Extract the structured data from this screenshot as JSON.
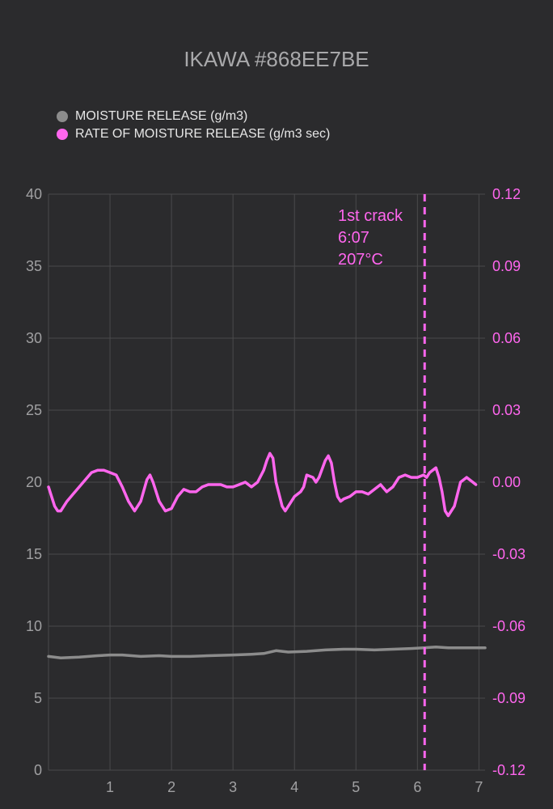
{
  "colors": {
    "background": "#2b2b2d",
    "grid": "#4a4a4c",
    "moisture": "#8c8c8c",
    "rate": "#ff66ee",
    "left_tick": "#a0a0a2",
    "right_tick": "#ff66ee",
    "title": "#a9a9ab"
  },
  "chart_data": {
    "type": "line",
    "title": "IKAWA #868EE7BE",
    "xlabel": "",
    "ylabel": "",
    "xlim": [
      0,
      7.1
    ],
    "ylim_left": [
      0,
      40
    ],
    "ylim_right": [
      -0.12,
      0.12
    ],
    "grid": true,
    "legend_position": "top-left",
    "x_ticks": [
      "1",
      "2",
      "3",
      "4",
      "5",
      "6",
      "7"
    ],
    "y_ticks_left": [
      "0",
      "5",
      "10",
      "15",
      "20",
      "25",
      "30",
      "35",
      "40"
    ],
    "y_ticks_right": [
      "-0.12",
      "-0.09",
      "-0.06",
      "-0.03",
      "0.00",
      "0.03",
      "0.06",
      "0.09",
      "0.12"
    ],
    "series": [
      {
        "name": "MOISTURE RELEASE (g/m3)",
        "axis": "left",
        "color": "#8c8c8c",
        "x": [
          0,
          0.2,
          0.5,
          0.8,
          1.0,
          1.2,
          1.5,
          1.8,
          2.0,
          2.3,
          2.6,
          3.0,
          3.3,
          3.5,
          3.7,
          3.9,
          4.2,
          4.5,
          4.8,
          5.0,
          5.3,
          5.6,
          5.9,
          6.1,
          6.3,
          6.5,
          6.8,
          7.1
        ],
        "values": [
          7.9,
          7.8,
          7.85,
          7.95,
          8.0,
          8.0,
          7.9,
          7.95,
          7.9,
          7.9,
          7.95,
          8.0,
          8.05,
          8.1,
          8.3,
          8.2,
          8.25,
          8.35,
          8.4,
          8.4,
          8.35,
          8.4,
          8.45,
          8.5,
          8.55,
          8.5,
          8.5,
          8.5
        ]
      },
      {
        "name": "RATE OF MOISTURE RELEASE (g/m3 sec)",
        "axis": "right",
        "color": "#ff66ee",
        "x": [
          0,
          0.05,
          0.1,
          0.15,
          0.2,
          0.3,
          0.4,
          0.5,
          0.6,
          0.7,
          0.8,
          0.9,
          1.0,
          1.1,
          1.2,
          1.3,
          1.4,
          1.5,
          1.6,
          1.65,
          1.7,
          1.8,
          1.9,
          2.0,
          2.1,
          2.2,
          2.3,
          2.4,
          2.5,
          2.6,
          2.7,
          2.8,
          2.9,
          3.0,
          3.1,
          3.2,
          3.3,
          3.4,
          3.5,
          3.55,
          3.6,
          3.65,
          3.7,
          3.8,
          3.85,
          3.9,
          4.0,
          4.1,
          4.15,
          4.2,
          4.3,
          4.35,
          4.4,
          4.5,
          4.55,
          4.6,
          4.65,
          4.7,
          4.75,
          4.8,
          4.9,
          5.0,
          5.1,
          5.2,
          5.3,
          5.4,
          5.5,
          5.6,
          5.7,
          5.8,
          5.9,
          6.0,
          6.1,
          6.15,
          6.2,
          6.3,
          6.35,
          6.4,
          6.45,
          6.5,
          6.6,
          6.7,
          6.8,
          6.9,
          6.95
        ],
        "values": [
          -0.002,
          -0.006,
          -0.01,
          -0.012,
          -0.012,
          -0.008,
          -0.005,
          -0.002,
          0.001,
          0.004,
          0.005,
          0.005,
          0.004,
          0.003,
          -0.002,
          -0.008,
          -0.012,
          -0.008,
          0.001,
          0.003,
          0.0,
          -0.008,
          -0.012,
          -0.011,
          -0.006,
          -0.003,
          -0.004,
          -0.004,
          -0.002,
          -0.001,
          -0.001,
          -0.001,
          -0.002,
          -0.002,
          -0.001,
          0.0,
          -0.002,
          0.0,
          0.005,
          0.009,
          0.012,
          0.01,
          0.0,
          -0.01,
          -0.012,
          -0.01,
          -0.006,
          -0.004,
          -0.002,
          0.003,
          0.002,
          0.0,
          0.002,
          0.009,
          0.011,
          0.008,
          0.0,
          -0.006,
          -0.008,
          -0.007,
          -0.006,
          -0.004,
          -0.004,
          -0.005,
          -0.003,
          -0.001,
          -0.004,
          -0.002,
          0.002,
          0.003,
          0.002,
          0.002,
          0.003,
          0.002,
          0.004,
          0.006,
          0.002,
          -0.004,
          -0.012,
          -0.014,
          -0.01,
          0.0,
          0.002,
          0.0,
          -0.001
        ]
      }
    ],
    "annotation": {
      "x": 6.117,
      "lines": [
        "1st crack",
        "6:07",
        "207°C"
      ],
      "color": "#ff66ee",
      "style": "dashed"
    }
  }
}
